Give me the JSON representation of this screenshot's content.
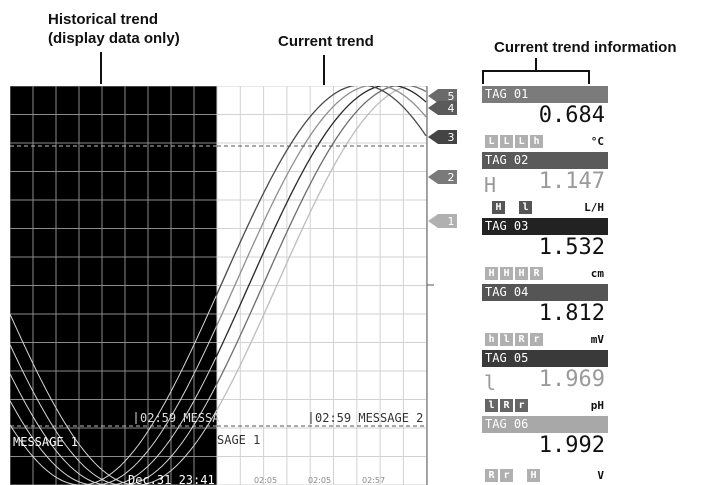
{
  "annotations": {
    "historical_trend": "Historical trend\n(display data only)",
    "current_trend": "Current trend",
    "current_trend_info": "Current trend information"
  },
  "trend": {
    "messages": [
      {
        "text": "02:59 MESSA",
        "area": "historical"
      },
      {
        "text": "MESSAGE 1",
        "area": "historical"
      },
      {
        "text": "Dec.31 23:41",
        "area": "historical"
      },
      {
        "text": "02:59 MESSAGE 2",
        "area": "current"
      },
      {
        "text": "SAGE 1",
        "area": "current"
      }
    ],
    "time_labels": [
      "",
      "02:05",
      "02:05",
      "02:57"
    ],
    "markers": [
      "5",
      "4",
      "3",
      "2",
      "1"
    ],
    "colors": {
      "historical_bg": "#000000",
      "current_bg": "#ffffff",
      "grid_hist": "#8a8a8a",
      "grid_curr": "#d2d2d2"
    }
  },
  "channels": [
    {
      "tag": "TAG 01",
      "value": "0.684",
      "unit": "°C",
      "alarm": "",
      "badges": [
        "L",
        "L",
        "L",
        "h"
      ],
      "header_color": "#7b7b7b",
      "value_color": "#111111",
      "badge_color": "#b0b0b0"
    },
    {
      "tag": "TAG 02",
      "value": "1.147",
      "unit": "L/H",
      "alarm": "H",
      "badges": [
        "H",
        "l"
      ],
      "header_color": "#5a5a5a",
      "value_color": "#9a9a9a",
      "badge_color": "#555555"
    },
    {
      "tag": "TAG 03",
      "value": "1.532",
      "unit": "cm",
      "alarm": "",
      "badges": [
        "H",
        "H",
        "H",
        "R"
      ],
      "header_color": "#222222",
      "value_color": "#111111",
      "badge_color": "#b0b0b0"
    },
    {
      "tag": "TAG 04",
      "value": "1.812",
      "unit": "mV",
      "alarm": "",
      "badges": [
        "h",
        "l",
        "R",
        "r"
      ],
      "header_color": "#555555",
      "value_color": "#111111",
      "badge_color": "#b0b0b0"
    },
    {
      "tag": "TAG 05",
      "value": "1.969",
      "unit": "pH",
      "alarm": "l",
      "badges": [
        "l",
        "R",
        "r"
      ],
      "header_color": "#3a3a3a",
      "value_color": "#9a9a9a",
      "badge_color": "#666666"
    },
    {
      "tag": "TAG 06",
      "value": "1.992",
      "unit": "V",
      "alarm": "",
      "badges": [
        "R",
        "r",
        "H"
      ],
      "header_color": "#a8a8a8",
      "value_color": "#111111",
      "badge_color": "#b0b0b0"
    }
  ]
}
